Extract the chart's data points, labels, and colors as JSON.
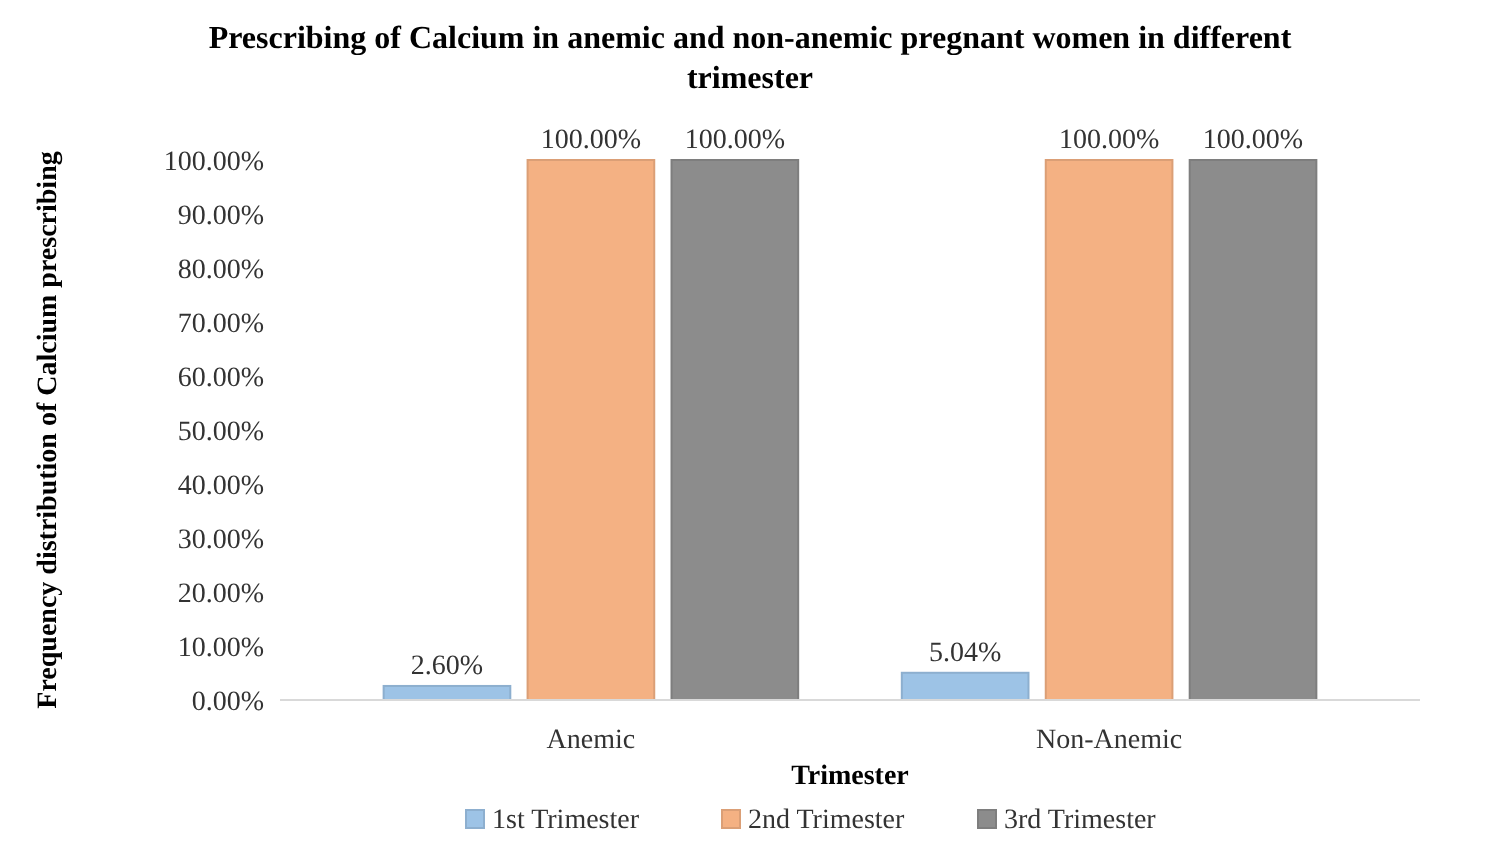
{
  "chart_data": {
    "type": "bar",
    "title": "Prescribing of Calcium in anemic and non-anemic pregnant women in different trimester",
    "xlabel": "Trimester",
    "ylabel": "Frequency distribution of Calcium prescribing",
    "categories": [
      "Anemic",
      "Non-Anemic"
    ],
    "series": [
      {
        "name": "1st Trimester",
        "color": "#9dc3e6",
        "values": [
          2.6,
          5.04
        ],
        "value_labels": [
          "2.60%",
          "5.04%"
        ]
      },
      {
        "name": "2nd Trimester",
        "color": "#f4b183",
        "values": [
          100,
          100
        ],
        "value_labels": [
          "100.00%",
          "100.00%"
        ]
      },
      {
        "name": "3rd Trimester",
        "color": "#8c8c8c",
        "values": [
          100,
          100
        ],
        "value_labels": [
          "100.00%",
          "100.00%"
        ]
      }
    ],
    "ylim": [
      0,
      100
    ],
    "yticks": [
      {
        "value": 0,
        "label": "0.00%"
      },
      {
        "value": 10,
        "label": "10.00%"
      },
      {
        "value": 20,
        "label": "20.00%"
      },
      {
        "value": 30,
        "label": "30.00%"
      },
      {
        "value": 40,
        "label": "40.00%"
      },
      {
        "value": 50,
        "label": "50.00%"
      },
      {
        "value": 60,
        "label": "60.00%"
      },
      {
        "value": 70,
        "label": "70.00%"
      },
      {
        "value": 80,
        "label": "80.00%"
      },
      {
        "value": 90,
        "label": "90.00%"
      },
      {
        "value": 100,
        "label": "100.00%"
      }
    ],
    "legend": "bottom"
  }
}
